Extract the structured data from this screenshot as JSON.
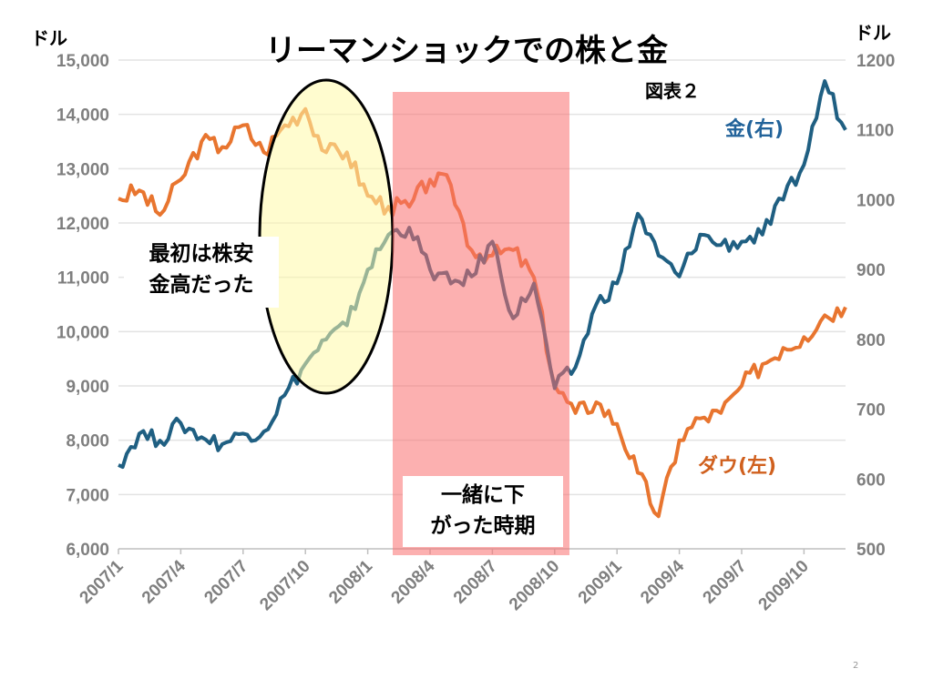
{
  "title": "リーマンショックでの株と金",
  "figure_label": "図表２",
  "page_number": "2",
  "annotations": {
    "stocks_down_gold_up": [
      "最初は株安",
      "金高だった"
    ],
    "both_fell": [
      "一緒に下",
      "がった時期"
    ]
  },
  "chart_data": {
    "type": "line",
    "title": "リーマンショックでの株と金",
    "x": [
      "2007/1",
      "2007/2",
      "2007/3",
      "2007/4",
      "2007/5",
      "2007/6",
      "2007/7",
      "2007/8",
      "2007/9",
      "2007/10",
      "2007/11",
      "2007/12",
      "2008/1",
      "2008/2",
      "2008/3",
      "2008/4",
      "2008/5",
      "2008/6",
      "2008/7",
      "2008/8",
      "2008/9",
      "2008/10",
      "2008/11",
      "2008/12",
      "2009/1",
      "2009/2",
      "2009/3",
      "2009/4",
      "2009/5",
      "2009/6",
      "2009/7",
      "2009/8",
      "2009/9",
      "2009/10",
      "2009/11",
      "2009/12"
    ],
    "xticks": [
      "2007/1",
      "2007/4",
      "2007/7",
      "2007/10",
      "2008/1",
      "2008/4",
      "2008/7",
      "2008/10",
      "2009/1",
      "2009/4",
      "2009/7",
      "2009/10"
    ],
    "left_axis": {
      "unit": "ドル",
      "ylim": [
        6000,
        15000
      ],
      "ticks": [
        "6,000",
        "7,000",
        "8,000",
        "9,000",
        "10,000",
        "11,000",
        "12,000",
        "13,000",
        "14,000",
        "15,000"
      ]
    },
    "right_axis": {
      "unit": "ドル",
      "ylim": [
        500,
        1200
      ],
      "ticks": [
        "500",
        "600",
        "700",
        "800",
        "900",
        "1000",
        "1100",
        "1200"
      ]
    },
    "grid": true,
    "series": [
      {
        "name": "ダウ(左)",
        "axis": "left",
        "color": "#e8752f",
        "values": [
          12450,
          12600,
          12150,
          12800,
          13500,
          13400,
          13800,
          13300,
          13800,
          14100,
          13300,
          13300,
          12500,
          12300,
          12300,
          12800,
          12700,
          11500,
          11400,
          11500,
          11000,
          9000,
          8500,
          8700,
          8300,
          7400,
          6600,
          8000,
          8400,
          8500,
          9000,
          9400,
          9700,
          9900,
          10300,
          10450
        ]
      },
      {
        "name": "金(右)",
        "axis": "right",
        "color": "#1f5f82",
        "values": [
          620,
          665,
          655,
          680,
          660,
          650,
          665,
          668,
          720,
          765,
          800,
          820,
          900,
          950,
          960,
          900,
          880,
          890,
          940,
          830,
          880,
          730,
          760,
          850,
          880,
          980,
          920,
          890,
          950,
          935,
          940,
          950,
          1000,
          1050,
          1170,
          1100
        ]
      }
    ],
    "highlights": [
      {
        "label": "最初は株安金高だった",
        "range": [
          "2007/9",
          "2008/2"
        ],
        "color": "#fff9a8"
      },
      {
        "label": "一緒に下がった時期",
        "range": [
          "2008/3",
          "2008/11"
        ],
        "color": "#fa7070"
      }
    ]
  }
}
